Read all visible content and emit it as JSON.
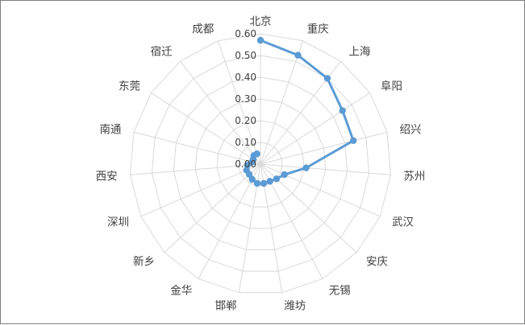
{
  "chart_data": {
    "type": "radar",
    "title": "",
    "categories": [
      "北京",
      "重庆",
      "上海",
      "阜阳",
      "绍兴",
      "苏州",
      "武汉",
      "安庆",
      "无锡",
      "潍坊",
      "邯郸",
      "金华",
      "新乡",
      "深圳",
      "西安",
      "南通",
      "东莞",
      "宿迁",
      "成都"
    ],
    "series": [
      {
        "values": [
          0.57,
          0.53,
          0.5,
          0.45,
          0.44,
          0.21,
          0.12,
          0.1,
          0.09,
          0.09,
          0.09,
          0.08,
          0.07,
          0.07,
          0.06,
          0.04,
          0.04,
          0.05,
          0.05
        ],
        "color": "#5b9bd5"
      }
    ],
    "radial_axis": {
      "range": [
        0,
        0.6
      ],
      "ticks": [
        "0.00",
        "0.10",
        "0.20",
        "0.30",
        "0.40",
        "0.50",
        "0.60"
      ]
    },
    "grid": true,
    "legend": "none"
  }
}
